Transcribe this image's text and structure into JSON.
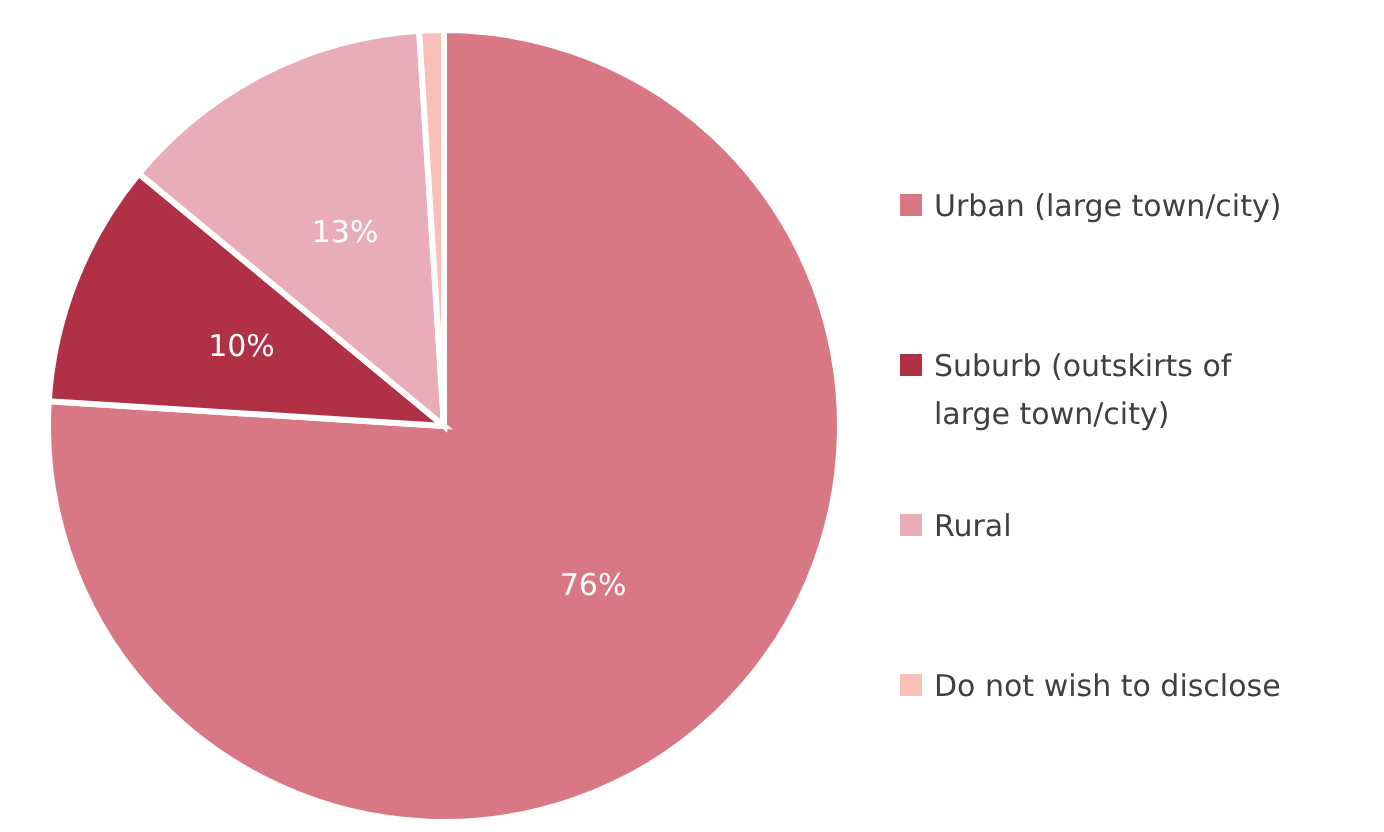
{
  "chart_data": {
    "type": "pie",
    "categories": [
      "Urban (large town/city)",
      "Suburb (outskirts of large town/city)",
      "Rural",
      "Do not wish to disclose"
    ],
    "values": [
      76,
      10,
      13,
      1
    ],
    "colors": [
      "#d97885",
      "#b03045",
      "#e8adb8",
      "#f9c0b8"
    ],
    "value_labels": [
      "76%",
      "10%",
      "13%",
      null
    ],
    "legend": "right"
  }
}
